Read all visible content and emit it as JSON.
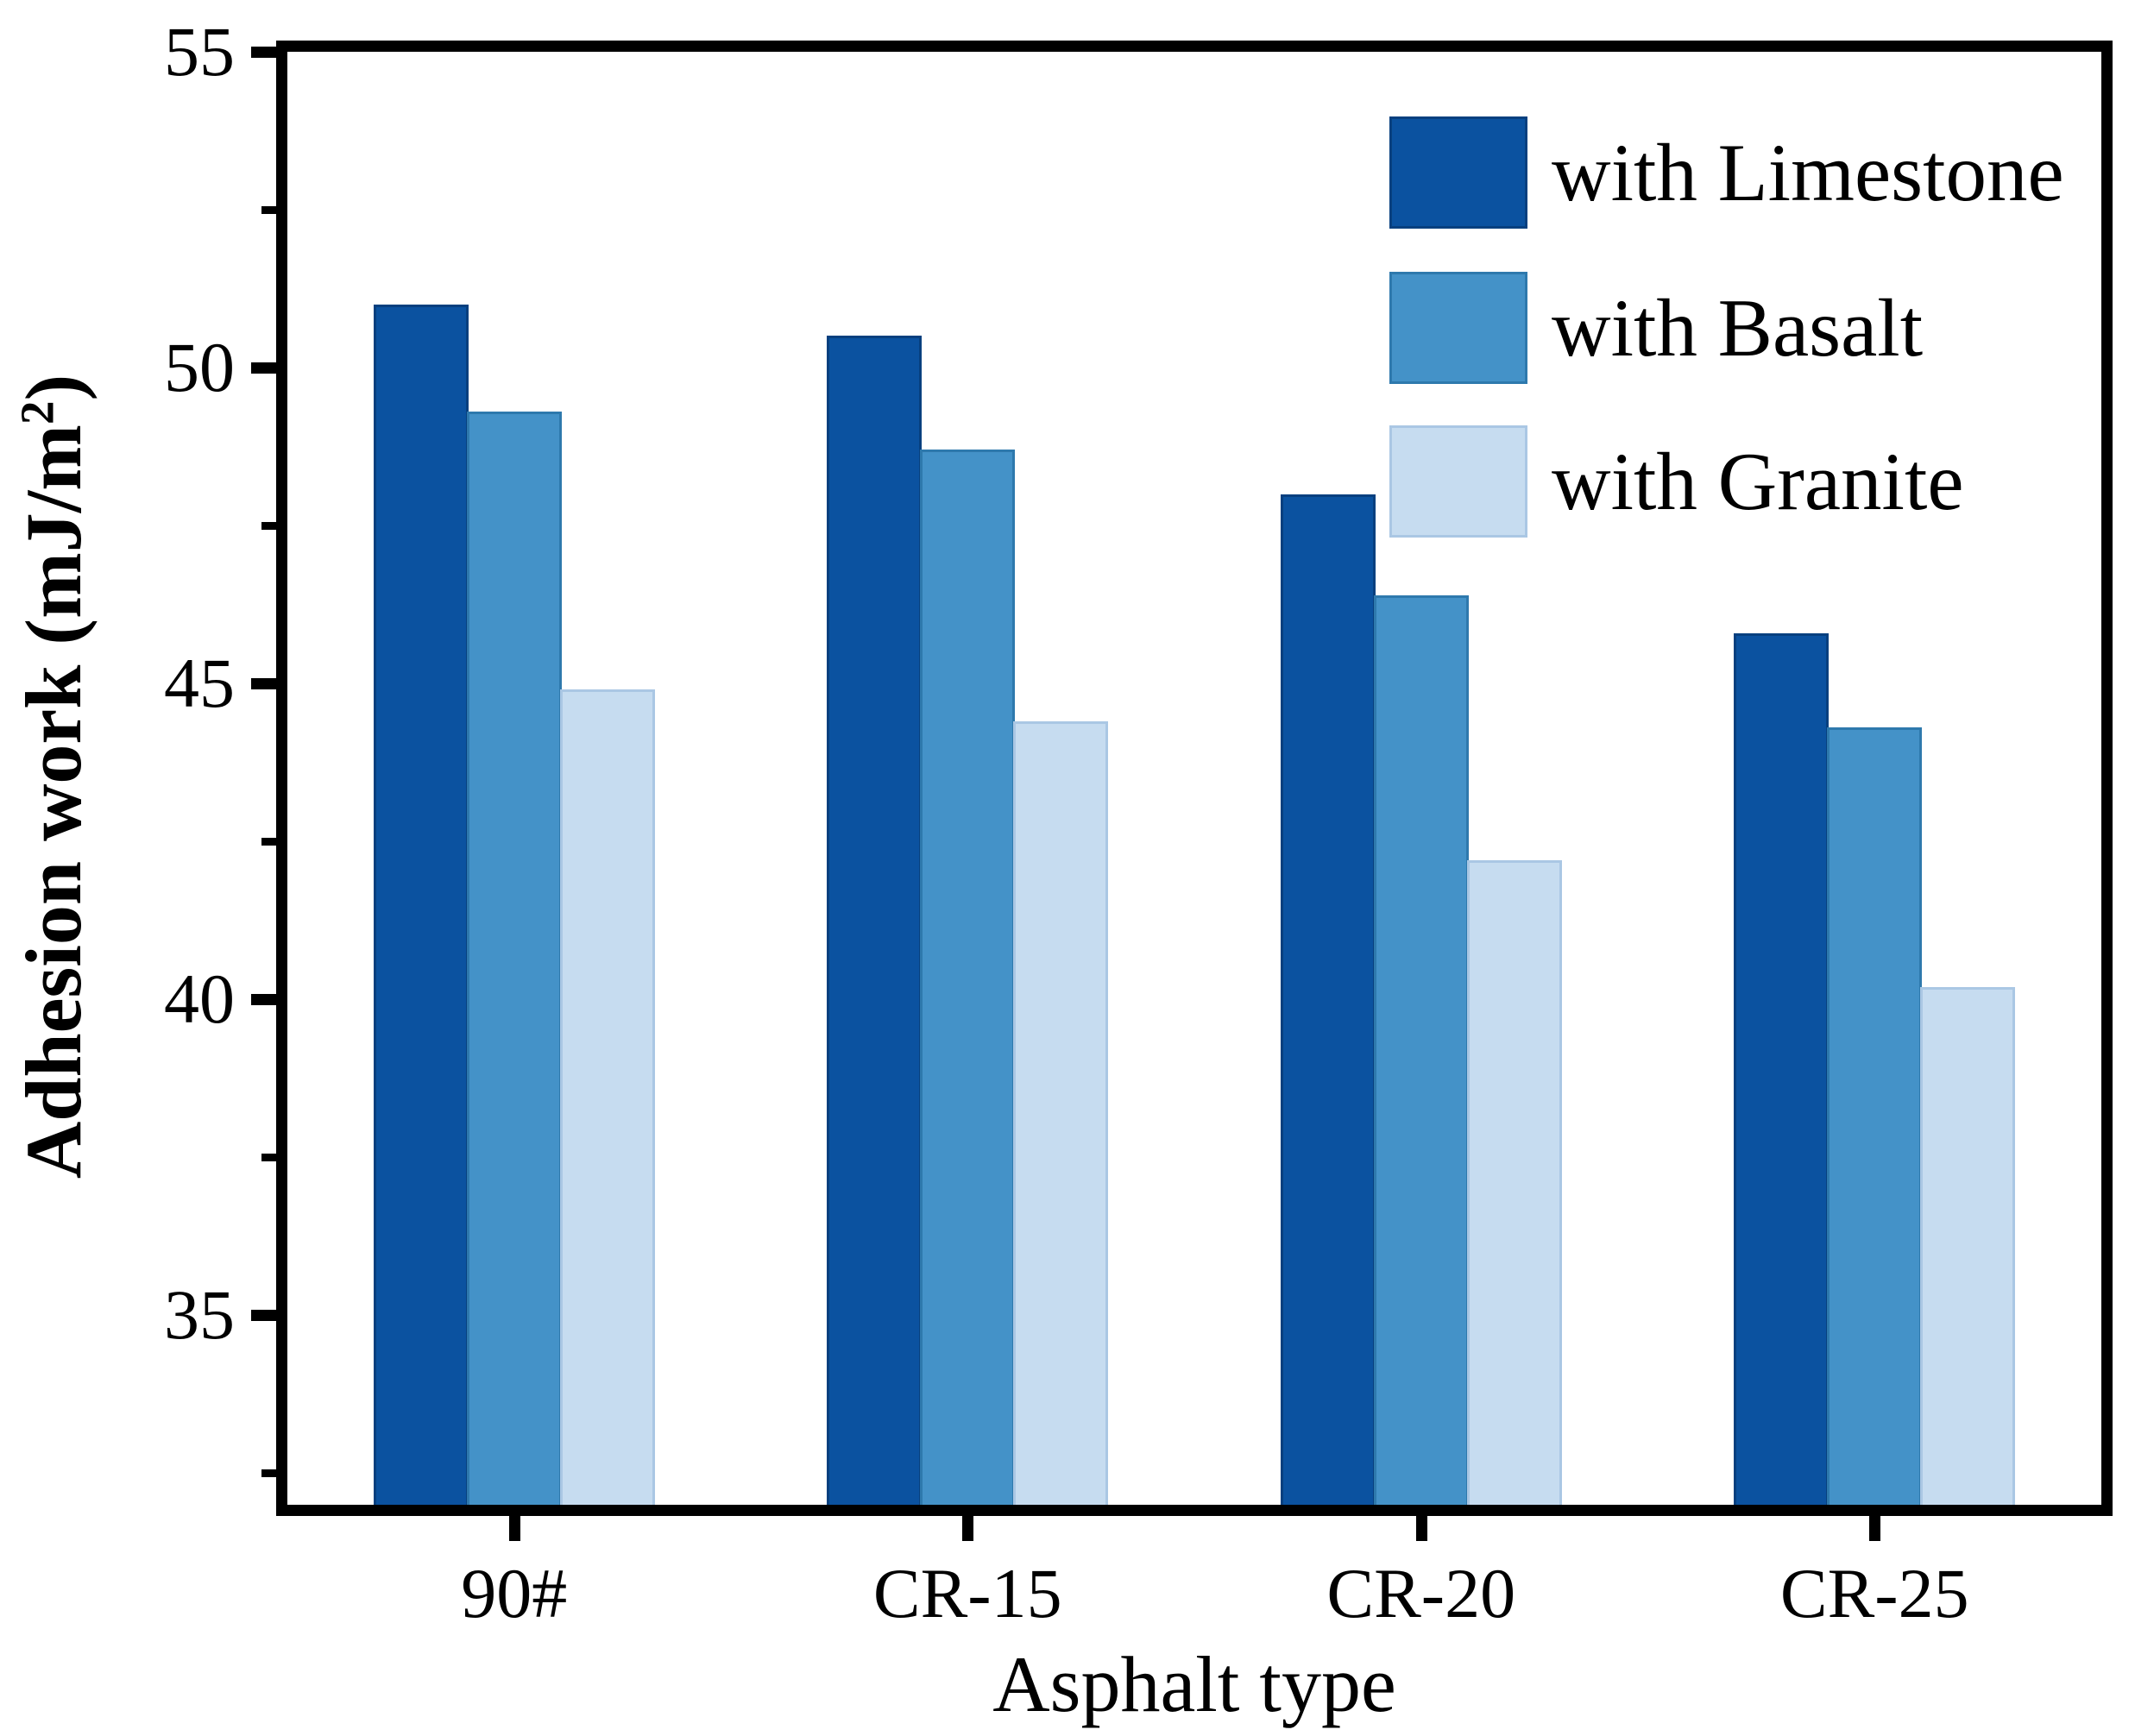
{
  "chart_data": {
    "type": "bar",
    "title": "",
    "categories": [
      "90#",
      "CR-15",
      "CR-20",
      "CR-25"
    ],
    "series": [
      {
        "name": "with Limestone",
        "color": "#0B52A0",
        "border_color": "#07407F",
        "values": [
          51.0,
          50.5,
          48.0,
          45.8
        ]
      },
      {
        "name": "with Basalt",
        "color": "#4492C8",
        "border_color": "#2E79AD",
        "values": [
          49.3,
          48.7,
          46.4,
          44.3
        ]
      },
      {
        "name": "with Granite",
        "color": "#C6DCF0",
        "border_color": "#AAC7E4",
        "values": [
          44.9,
          44.4,
          42.2,
          40.2
        ]
      }
    ],
    "xlabel": "Asphalt type",
    "ylabel": "Adhesion work (mJ/m²)",
    "ylabel_parts": {
      "main": "Adhesion work (mJ/m",
      "sup": "2",
      "close": ")"
    },
    "ylim": [
      32,
      55
    ],
    "yticks": [
      35,
      40,
      45,
      50,
      55
    ],
    "yticks_minor": [
      32.5,
      37.5,
      42.5,
      47.5,
      52.5
    ],
    "grid": false,
    "legend_position": "top-right",
    "axis_color": "#000000",
    "background_color": "#FFFFFF"
  }
}
